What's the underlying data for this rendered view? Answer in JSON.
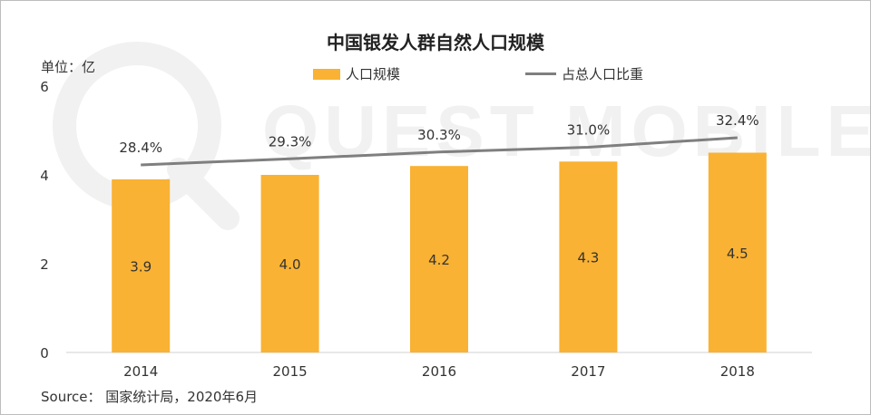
{
  "watermark": {
    "text": "QUEST MOBILE"
  },
  "unit_label": "单位：亿",
  "source": "Source： 国家统计局，2020年6月",
  "colors": {
    "bar": "#F9B233",
    "line": "#7F7F7F",
    "axis": "#D0D0D0",
    "text": "#333333"
  },
  "chart_data": {
    "type": "bar",
    "title": "中国银发人群自然人口规模",
    "categories": [
      "2014",
      "2015",
      "2016",
      "2017",
      "2018"
    ],
    "series": [
      {
        "name": "人口规模",
        "type": "bar",
        "values": [
          3.9,
          4.0,
          4.2,
          4.3,
          4.5
        ],
        "labels": [
          "3.9",
          "4.0",
          "4.2",
          "4.3",
          "4.5"
        ]
      },
      {
        "name": "占总人口比重",
        "type": "line",
        "values": [
          28.4,
          29.3,
          30.3,
          31.0,
          32.4
        ],
        "labels": [
          "28.4%",
          "29.3%",
          "30.3%",
          "31.0%",
          "32.4%"
        ]
      }
    ],
    "yaxis_ticks": [
      "0",
      "2",
      "4",
      "6"
    ],
    "ylim": [
      0,
      6
    ],
    "legend_position": "top",
    "grid": false
  }
}
